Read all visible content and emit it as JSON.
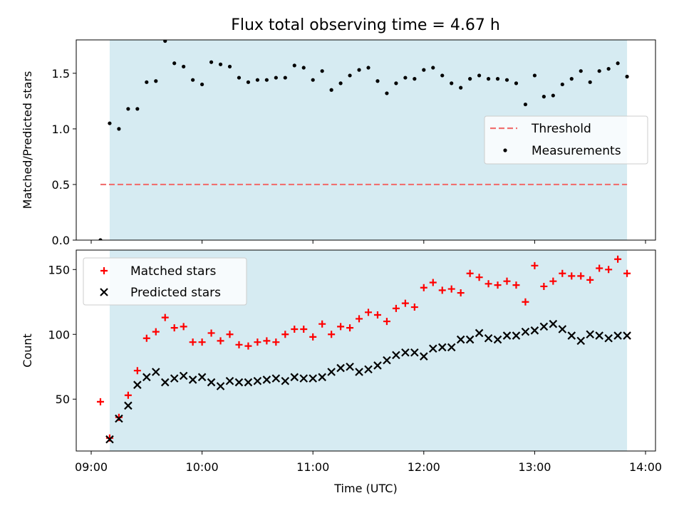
{
  "title": "Flux total observing time = 4.67 h",
  "colors": {
    "shade": "#add8e6",
    "threshold": "#f07070",
    "measurements": "#000000",
    "matched": "#ff0000",
    "predicted": "#000000"
  },
  "chart_data": [
    {
      "type": "scatter",
      "panel": "top",
      "xlabel": "",
      "ylabel": "Matched/Predicted stars",
      "xlim": [
        "09:00",
        "14:00"
      ],
      "ylim": [
        0,
        1.8
      ],
      "yticks": [
        0.0,
        0.5,
        1.0,
        1.5
      ],
      "ytick_labels": [
        "0.0",
        "0.5",
        "1.0",
        "1.5"
      ],
      "shaded_span": [
        "09:10",
        "13:50"
      ],
      "legend": {
        "placement": "center-right",
        "entries": [
          "Threshold",
          "Measurements"
        ]
      },
      "threshold": {
        "name": "Threshold",
        "value": 0.5,
        "x_range": [
          "09:05",
          "13:50"
        ],
        "style": "dashed"
      },
      "series": [
        {
          "name": "Measurements",
          "marker": "dot",
          "x": [
            "09:05",
            "09:10",
            "09:15",
            "09:20",
            "09:25",
            "09:30",
            "09:35",
            "09:40",
            "09:45",
            "09:50",
            "09:55",
            "10:00",
            "10:05",
            "10:10",
            "10:15",
            "10:20",
            "10:25",
            "10:30",
            "10:35",
            "10:40",
            "10:45",
            "10:50",
            "10:55",
            "11:00",
            "11:05",
            "11:10",
            "11:15",
            "11:20",
            "11:25",
            "11:30",
            "11:35",
            "11:40",
            "11:45",
            "11:50",
            "11:55",
            "12:00",
            "12:05",
            "12:10",
            "12:15",
            "12:20",
            "12:25",
            "12:30",
            "12:35",
            "12:40",
            "12:45",
            "12:50",
            "12:55",
            "13:00",
            "13:05",
            "13:10",
            "13:15",
            "13:20",
            "13:25",
            "13:30",
            "13:35",
            "13:40",
            "13:45",
            "13:50"
          ],
          "y": [
            0.0,
            1.05,
            1.0,
            1.18,
            1.18,
            1.42,
            1.43,
            1.79,
            1.59,
            1.56,
            1.44,
            1.4,
            1.6,
            1.58,
            1.56,
            1.46,
            1.42,
            1.44,
            1.44,
            1.46,
            1.46,
            1.57,
            1.55,
            1.44,
            1.52,
            1.35,
            1.41,
            1.48,
            1.53,
            1.55,
            1.43,
            1.32,
            1.41,
            1.46,
            1.45,
            1.53,
            1.55,
            1.48,
            1.41,
            1.37,
            1.45,
            1.48,
            1.45,
            1.45,
            1.44,
            1.41,
            1.22,
            1.48,
            1.29,
            1.3,
            1.4,
            1.45,
            1.52,
            1.42,
            1.52,
            1.54,
            1.59,
            1.47
          ]
        }
      ]
    },
    {
      "type": "scatter",
      "panel": "bottom",
      "xlabel": "Time (UTC)",
      "ylabel": "Count",
      "xlim": [
        "09:00",
        "14:00"
      ],
      "xticks": [
        "09:00",
        "10:00",
        "11:00",
        "12:00",
        "13:00",
        "14:00"
      ],
      "ylim": [
        10,
        165
      ],
      "yticks": [
        50,
        100,
        150
      ],
      "ytick_labels": [
        "50",
        "100",
        "150"
      ],
      "shaded_span": [
        "09:10",
        "13:50"
      ],
      "legend": {
        "placement": "upper-left",
        "entries": [
          "Matched stars",
          "Predicted stars"
        ]
      },
      "series": [
        {
          "name": "Matched stars",
          "marker": "plus",
          "x": [
            "09:05",
            "09:10",
            "09:15",
            "09:20",
            "09:25",
            "09:30",
            "09:35",
            "09:40",
            "09:45",
            "09:50",
            "09:55",
            "10:00",
            "10:05",
            "10:10",
            "10:15",
            "10:20",
            "10:25",
            "10:30",
            "10:35",
            "10:40",
            "10:45",
            "10:50",
            "10:55",
            "11:00",
            "11:05",
            "11:10",
            "11:15",
            "11:20",
            "11:25",
            "11:30",
            "11:35",
            "11:40",
            "11:45",
            "11:50",
            "11:55",
            "12:00",
            "12:05",
            "12:10",
            "12:15",
            "12:20",
            "12:25",
            "12:30",
            "12:35",
            "12:40",
            "12:45",
            "12:50",
            "12:55",
            "13:00",
            "13:05",
            "13:10",
            "13:15",
            "13:20",
            "13:25",
            "13:30",
            "13:35",
            "13:40",
            "13:45",
            "13:50"
          ],
          "y": [
            48,
            20,
            36,
            53,
            72,
            97,
            102,
            113,
            105,
            106,
            94,
            94,
            101,
            95,
            100,
            92,
            91,
            94,
            95,
            94,
            100,
            104,
            104,
            98,
            108,
            100,
            106,
            105,
            112,
            117,
            115,
            110,
            120,
            124,
            121,
            136,
            140,
            134,
            135,
            132,
            147,
            144,
            139,
            138,
            141,
            138,
            125,
            153,
            137,
            141,
            147,
            145,
            145,
            142,
            151,
            150,
            158,
            147
          ]
        },
        {
          "name": "Predicted stars",
          "marker": "x",
          "x": [
            "09:10",
            "09:15",
            "09:20",
            "09:25",
            "09:30",
            "09:35",
            "09:40",
            "09:45",
            "09:50",
            "09:55",
            "10:00",
            "10:05",
            "10:10",
            "10:15",
            "10:20",
            "10:25",
            "10:30",
            "10:35",
            "10:40",
            "10:45",
            "10:50",
            "10:55",
            "11:00",
            "11:05",
            "11:10",
            "11:15",
            "11:20",
            "11:25",
            "11:30",
            "11:35",
            "11:40",
            "11:45",
            "11:50",
            "11:55",
            "12:00",
            "12:05",
            "12:10",
            "12:15",
            "12:20",
            "12:25",
            "12:30",
            "12:35",
            "12:40",
            "12:45",
            "12:50",
            "12:55",
            "13:00",
            "13:05",
            "13:10",
            "13:15",
            "13:20",
            "13:25",
            "13:30",
            "13:35",
            "13:40",
            "13:45",
            "13:50"
          ],
          "y": [
            19,
            35,
            45,
            61,
            67,
            71,
            63,
            66,
            68,
            65,
            67,
            63,
            60,
            64,
            63,
            63,
            64,
            65,
            66,
            64,
            67,
            66,
            66,
            67,
            71,
            74,
            75,
            71,
            73,
            76,
            80,
            84,
            86,
            86,
            83,
            89,
            90,
            90,
            96,
            96,
            101,
            97,
            96,
            99,
            99,
            102,
            103,
            106,
            108,
            104,
            99,
            95,
            100,
            99,
            97,
            99,
            99
          ]
        }
      ]
    }
  ]
}
